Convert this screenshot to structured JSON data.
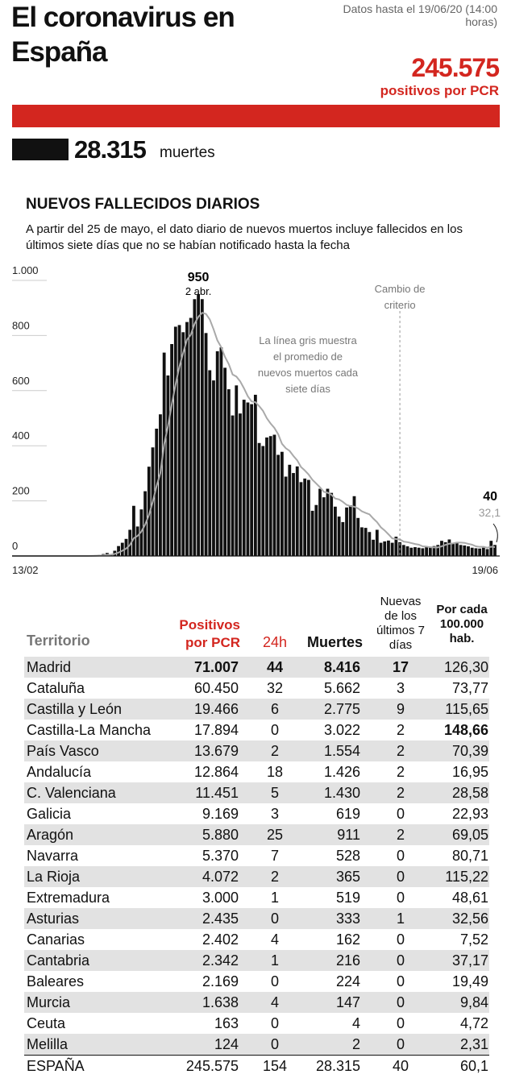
{
  "header": {
    "title": "El coronavirus en España",
    "as_of": "Datos hasta el 19/06/20 (14:00 horas)",
    "positives": {
      "value": 245575,
      "label": "245.575"
    },
    "positives_label": "positivos por PCR",
    "deaths": {
      "value": 28315,
      "label": "28.315"
    },
    "deaths_label": "muertes",
    "positives_color": "#d3261f",
    "deaths_color": "#111111"
  },
  "chart_data": {
    "type": "bar",
    "title": "NUEVOS FALLECIDOS DIARIOS",
    "subtitle": "A partir del 25 de mayo, el dato diario de nuevos muertos incluye fallecidos en los últimos siete días que no se habían notificado hasta la fecha",
    "categories": [
      "13/02",
      null,
      null,
      null,
      null,
      null,
      null,
      null,
      null,
      null,
      null,
      null,
      null,
      null,
      null,
      null,
      null,
      null,
      null,
      null,
      null,
      null,
      null,
      null,
      null,
      null,
      null,
      null,
      null,
      null,
      null,
      null,
      null,
      null,
      null,
      null,
      null,
      null,
      null,
      null,
      null,
      null,
      null,
      null,
      null,
      null,
      null,
      null,
      null,
      null,
      null,
      null,
      null,
      null,
      null,
      null,
      null,
      null,
      null,
      null,
      null,
      null,
      null,
      null,
      null,
      null,
      null,
      null,
      null,
      null,
      null,
      null,
      null,
      null,
      null,
      null,
      null,
      null,
      null,
      null,
      null,
      null,
      null,
      null,
      null,
      null,
      null,
      null,
      null,
      null,
      null,
      null,
      null,
      null,
      null,
      null,
      null,
      null,
      null,
      null,
      null,
      null,
      null,
      null,
      null,
      null,
      null,
      null,
      null,
      null,
      null,
      null,
      null,
      null,
      null,
      null,
      null,
      null,
      null,
      null,
      null,
      null,
      null,
      null,
      null,
      null,
      null,
      "19/06"
    ],
    "series": [
      {
        "color": "#111111",
        "values": [
          0,
          0,
          0,
          0,
          0,
          0,
          0,
          0,
          0,
          0,
          0,
          0,
          0,
          0,
          0,
          0,
          0,
          0,
          0,
          1,
          0,
          1,
          3,
          4,
          7,
          11,
          7,
          19,
          36,
          48,
          62,
          95,
          182,
          107,
          169,
          235,
          324,
          394,
          462,
          514,
          738,
          655,
          769,
          832,
          838,
          812,
          849,
          864,
          932,
          950,
          932,
          809,
          674,
          637,
          743,
          757,
          683,
          605,
          510,
          619,
          517,
          567,
          557,
          551,
          585,
          410,
          399,
          430,
          435,
          440,
          367,
          378,
          288,
          331,
          301,
          325,
          268,
          281,
          276,
          164,
          185,
          244,
          213,
          244,
          229,
          179,
          143,
          123,
          176,
          184,
          217,
          138,
          104,
          102,
          87,
          59,
          95,
          48,
          53,
          56,
          48,
          70,
          50,
          40,
          35,
          30,
          32,
          30,
          28,
          32,
          34,
          36,
          40,
          55,
          50,
          60,
          45,
          50,
          40,
          38,
          35,
          30,
          28,
          27,
          30,
          25,
          55,
          40
        ]
      },
      {
        "type": "line",
        "color": "#a9a9a9",
        "values": [
          0,
          0,
          0,
          0,
          0,
          0,
          0,
          0,
          0,
          0,
          0,
          0,
          0,
          0,
          0,
          0,
          0,
          0,
          0,
          0.1,
          0.1,
          0.3,
          0.7,
          1.3,
          2.3,
          3.9,
          4.7,
          7.4,
          12.4,
          18.9,
          26.9,
          39.7,
          64.1,
          72.7,
          88.4,
          114.0,
          148.9,
          196.6,
          253.3,
          300.7,
          405.1,
          470.9,
          549.4,
          622.1,
          686.9,
          736.9,
          784.7,
          802.7,
          842.3,
          868.1,
          882.4,
          878.3,
          858.4,
          822.6,
          782.4,
          757.9,
          722.3,
          696.1,
          658.6,
          651.1,
          633.6,
          608.3,
          579.7,
          560.9,
          558.0,
          543.7,
          526.6,
          499.9,
          480.7,
          464.6,
          441.6,
          407.0,
          391.0,
          381.3,
          362.9,
          347.1,
          322.6,
          310.3,
          295.7,
          276.3,
          262.9,
          249.0,
          233.0,
          229.6,
          222.1,
          208.3,
          205.3,
          196.4,
          185.3,
          181.1,
          178.7,
          172.7,
          162.1,
          156.3,
          151.1,
          135.9,
          122.8,
          104.1,
          92.6,
          78.6,
          63.7,
          61.3,
          60.0,
          52.1,
          50.3,
          46.9,
          43.6,
          41.0,
          35.0,
          33.9,
          31.6,
          31.1,
          31.1,
          35.0,
          40.3,
          44.6,
          45.7,
          48.6,
          48.6,
          47.7,
          44.1,
          40.9,
          35.1,
          33.1,
          33.1,
          30.1,
          33.5,
          32.1
        ]
      }
    ],
    "ylim": [
      0,
      1000
    ],
    "yticks": [
      0,
      200,
      400,
      600,
      800,
      {
        "value": 1000,
        "label": "1.000"
      }
    ],
    "grid": true,
    "annotations": {
      "peak_date": "2 abr.",
      "criteria_change": "Cambio de criterio",
      "criteria_change_index": 102,
      "average_note": "La línea gris muestra el promedio de nuevos muertos cada siete días",
      "last_average": "32,1"
    }
  },
  "table": {
    "headers": [
      "Territorio",
      "Positivos por PCR",
      "24h",
      "Muertes",
      "Nuevas de los últimos 7 días",
      "Por cada 100.000 hab."
    ],
    "rows": [
      [
        "Madrid",
        "71.007",
        "44",
        "8.416",
        "17",
        "126,30"
      ],
      [
        "Cataluña",
        "60.450",
        "32",
        "5.662",
        "3",
        "73,77"
      ],
      [
        "Castilla y León",
        "19.466",
        "6",
        "2.775",
        "9",
        "115,65"
      ],
      [
        "Castilla-La Mancha",
        "17.894",
        "0",
        "3.022",
        "2",
        "148,66"
      ],
      [
        "País Vasco",
        "13.679",
        "2",
        "1.554",
        "2",
        "70,39"
      ],
      [
        "Andalucía",
        "12.864",
        "18",
        "1.426",
        "2",
        "16,95"
      ],
      [
        "C. Valenciana",
        "11.451",
        "5",
        "1.430",
        "2",
        "28,58"
      ],
      [
        "Galicia",
        "9.169",
        "3",
        "619",
        "0",
        "22,93"
      ],
      [
        "Aragón",
        "5.880",
        "25",
        "911",
        "2",
        "69,05"
      ],
      [
        "Navarra",
        "5.370",
        "7",
        "528",
        "0",
        "80,71"
      ],
      [
        "La Rioja",
        "4.072",
        "2",
        "365",
        "0",
        "115,22"
      ],
      [
        "Extremadura",
        "3.000",
        "1",
        "519",
        "0",
        "48,61"
      ],
      [
        "Asturias",
        "2.435",
        "0",
        "333",
        "1",
        "32,56"
      ],
      [
        "Canarias",
        "2.402",
        "4",
        "162",
        "0",
        "7,52"
      ],
      [
        "Cantabria",
        "2.342",
        "1",
        "216",
        "0",
        "37,17"
      ],
      [
        "Baleares",
        "2.169",
        "0",
        "224",
        "0",
        "19,49"
      ],
      [
        "Murcia",
        "1.638",
        "4",
        "147",
        "0",
        "9,84"
      ],
      [
        "Ceuta",
        "163",
        "0",
        "4",
        "0",
        "4,72"
      ],
      [
        "Melilla",
        "124",
        "0",
        "2",
        "0",
        "2,31"
      ]
    ],
    "total": [
      "ESPAÑA",
      "245.575",
      "154",
      "28.315",
      "40",
      "60,1"
    ],
    "bold_cells": [
      [
        0,
        1
      ],
      [
        0,
        2
      ],
      [
        0,
        3
      ],
      [
        0,
        4
      ],
      [
        3,
        5
      ]
    ]
  }
}
